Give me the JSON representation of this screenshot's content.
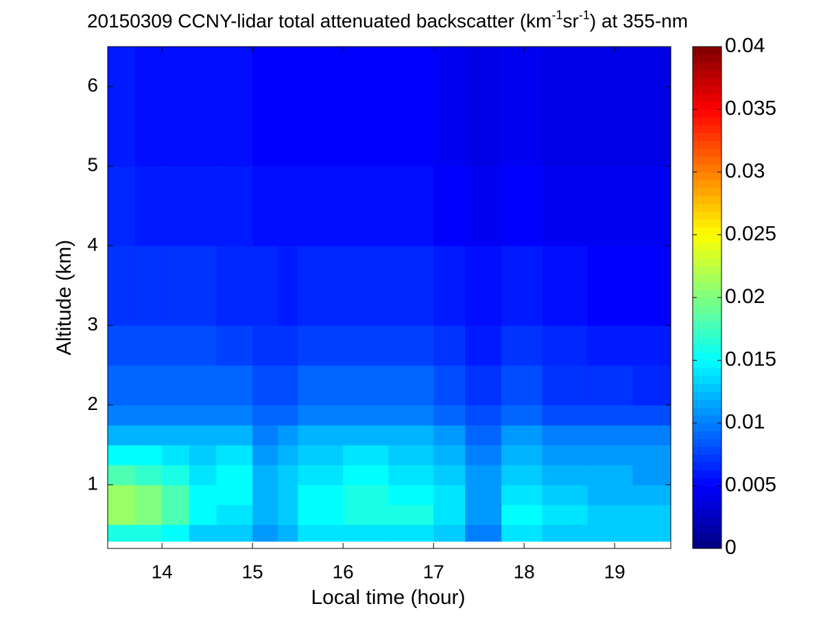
{
  "chart_data": {
    "type": "heatmap",
    "title": [
      "20150309 CCNY-lidar total attenuated backscatter (km",
      "-1",
      "sr",
      "-1",
      ") at 355-nm"
    ],
    "xlabel": "Local time (hour)",
    "ylabel": "Altitude (km)",
    "colormap": "jet",
    "x": [
      13.4,
      13.7,
      14.0,
      14.3,
      14.6,
      15.0,
      15.28,
      15.5,
      16.0,
      16.5,
      17.0,
      17.35,
      17.75,
      18.2,
      18.7,
      19.2,
      19.62
    ],
    "y": [
      0.29,
      0.5,
      0.75,
      1.0,
      1.25,
      1.5,
      1.75,
      2.0,
      2.5,
      3.0,
      4.0,
      5.0,
      6.5
    ],
    "values": [
      [
        0.016,
        0.021,
        0.021,
        0.018,
        0.015,
        0.012,
        0.01,
        0.009,
        0.008,
        0.007,
        0.0065,
        0.006
      ],
      [
        0.016,
        0.02,
        0.02,
        0.017,
        0.015,
        0.012,
        0.01,
        0.009,
        0.008,
        0.007,
        0.006,
        0.0055
      ],
      [
        0.015,
        0.018,
        0.018,
        0.016,
        0.014,
        0.012,
        0.01,
        0.009,
        0.008,
        0.007,
        0.006,
        0.0055
      ],
      [
        0.013,
        0.015,
        0.015,
        0.014,
        0.013,
        0.012,
        0.01,
        0.009,
        0.008,
        0.007,
        0.006,
        0.0055
      ],
      [
        0.013,
        0.014,
        0.015,
        0.015,
        0.014,
        0.012,
        0.01,
        0.009,
        0.0075,
        0.0065,
        0.006,
        0.0055
      ],
      [
        0.011,
        0.012,
        0.012,
        0.012,
        0.011,
        0.01,
        0.009,
        0.008,
        0.007,
        0.0065,
        0.0055,
        0.005
      ],
      [
        0.012,
        0.013,
        0.013,
        0.013,
        0.012,
        0.011,
        0.009,
        0.008,
        0.007,
        0.006,
        0.0055,
        0.005
      ],
      [
        0.014,
        0.015,
        0.015,
        0.014,
        0.013,
        0.012,
        0.01,
        0.009,
        0.0075,
        0.0065,
        0.0055,
        0.005
      ],
      [
        0.014,
        0.016,
        0.016,
        0.015,
        0.014,
        0.012,
        0.01,
        0.009,
        0.0075,
        0.0065,
        0.0055,
        0.005
      ],
      [
        0.014,
        0.016,
        0.015,
        0.014,
        0.013,
        0.012,
        0.01,
        0.009,
        0.0075,
        0.0065,
        0.0055,
        0.005
      ],
      [
        0.013,
        0.014,
        0.014,
        0.013,
        0.012,
        0.011,
        0.009,
        0.008,
        0.007,
        0.006,
        0.005,
        0.0045
      ],
      [
        0.01,
        0.011,
        0.011,
        0.011,
        0.01,
        0.009,
        0.008,
        0.007,
        0.006,
        0.0055,
        0.0045,
        0.004
      ],
      [
        0.014,
        0.015,
        0.014,
        0.013,
        0.012,
        0.011,
        0.009,
        0.008,
        0.007,
        0.006,
        0.005,
        0.0045
      ],
      [
        0.013,
        0.014,
        0.013,
        0.012,
        0.011,
        0.01,
        0.008,
        0.007,
        0.0065,
        0.0055,
        0.0045,
        0.004
      ],
      [
        0.013,
        0.013,
        0.012,
        0.012,
        0.011,
        0.01,
        0.008,
        0.007,
        0.006,
        0.005,
        0.0045,
        0.004
      ],
      [
        0.013,
        0.013,
        0.012,
        0.011,
        0.011,
        0.01,
        0.008,
        0.0065,
        0.006,
        0.005,
        0.0045,
        0.004
      ]
    ],
    "xlim": [
      13.4,
      19.62
    ],
    "ylim": [
      0.2,
      6.5
    ],
    "xticks": [
      14,
      15,
      16,
      17,
      18,
      19
    ],
    "yticks": [
      1,
      2,
      3,
      4,
      5,
      6
    ],
    "clim": [
      0,
      0.04
    ],
    "cticks": [
      0,
      0.005,
      0.01,
      0.015,
      0.02,
      0.025,
      0.03,
      0.035,
      0.04
    ]
  }
}
